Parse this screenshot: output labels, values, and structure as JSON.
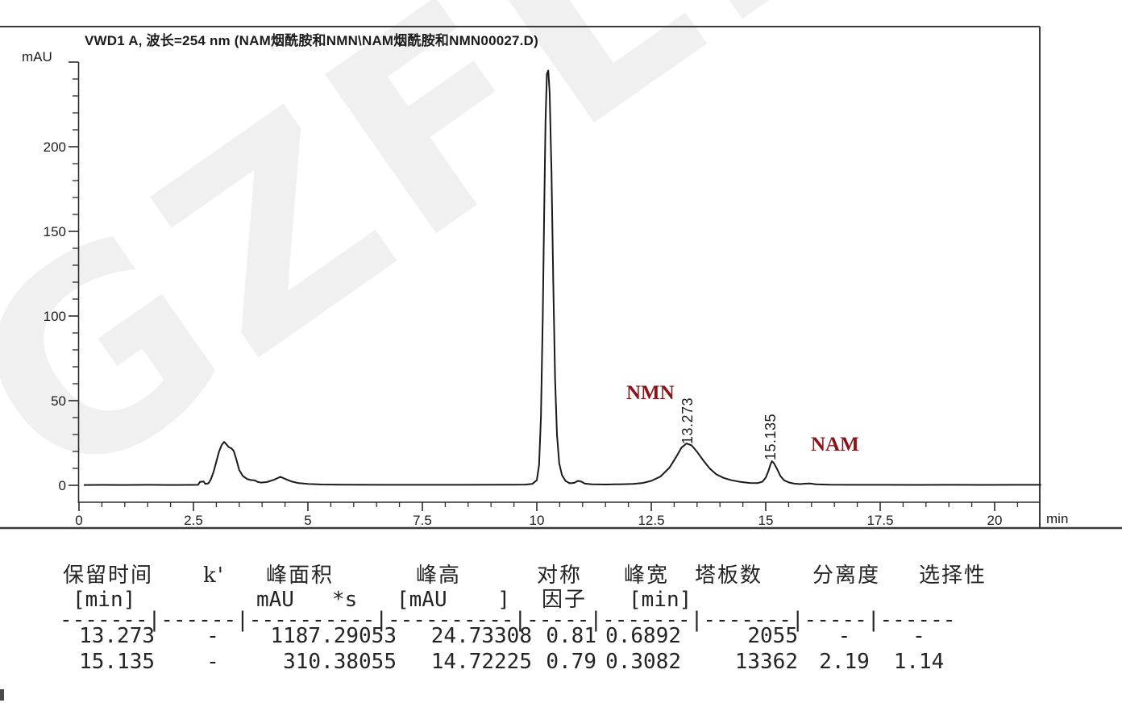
{
  "watermark": "GZFLM",
  "colors": {
    "peak_label": "#8a1518",
    "trace": "#1a1a1a",
    "axis": "#2b2b2b",
    "frame": "#3a3a3a"
  },
  "chart_data": {
    "type": "line",
    "title": "VWD1 A, 波长=254 nm (NAM烟酰胺和NMN\\NAM烟酰胺和NMN00027.D)",
    "ylabel": "mAU",
    "xlabel": "min",
    "y_unit": "mAU",
    "x_unit": "min",
    "xlim": [
      0,
      21
    ],
    "ylim": [
      0,
      250
    ],
    "x_ticks": [
      {
        "t": 0,
        "label": "0"
      },
      {
        "t": 2.5,
        "label": "2.5"
      },
      {
        "t": 5,
        "label": "5"
      },
      {
        "t": 7.5,
        "label": "7.5"
      },
      {
        "t": 10,
        "label": "10"
      },
      {
        "t": 12.5,
        "label": "12.5"
      },
      {
        "t": 15,
        "label": "15"
      },
      {
        "t": 17.5,
        "label": "17.5"
      },
      {
        "t": 20,
        "label": "20"
      }
    ],
    "x_minor_step": 0.5,
    "y_ticks": [
      {
        "v": 0,
        "label": "0"
      },
      {
        "v": 50,
        "label": "50"
      },
      {
        "v": 100,
        "label": "100"
      },
      {
        "v": 150,
        "label": "150"
      },
      {
        "v": 200,
        "label": "200"
      },
      {
        "v": 250,
        "label": ""
      }
    ],
    "y_minor_step": 10,
    "peaks": [
      {
        "label": "NMN",
        "rt_label": "13.273",
        "rt": 13.273,
        "height_mau": 24.73308
      },
      {
        "label": "NAM",
        "rt_label": "15.135",
        "rt": 15.135,
        "height_mau": 14.72225
      }
    ],
    "trace": [
      [
        0.12,
        0.2
      ],
      [
        0.5,
        0.25
      ],
      [
        1.0,
        0.2
      ],
      [
        1.5,
        0.3
      ],
      [
        2.0,
        0.2
      ],
      [
        2.45,
        0.25
      ],
      [
        2.6,
        0.3
      ],
      [
        2.64,
        2.0
      ],
      [
        2.72,
        2.3
      ],
      [
        2.76,
        0.8
      ],
      [
        2.83,
        1.2
      ],
      [
        2.88,
        3.5
      ],
      [
        2.94,
        8
      ],
      [
        3.0,
        14
      ],
      [
        3.06,
        20
      ],
      [
        3.12,
        24
      ],
      [
        3.17,
        25.6
      ],
      [
        3.22,
        24.2
      ],
      [
        3.27,
        22.6
      ],
      [
        3.33,
        21.8
      ],
      [
        3.38,
        20.3
      ],
      [
        3.44,
        15
      ],
      [
        3.5,
        9
      ],
      [
        3.58,
        5.5
      ],
      [
        3.68,
        3.6
      ],
      [
        3.76,
        3.1
      ],
      [
        3.84,
        2.9
      ],
      [
        3.9,
        2.0
      ],
      [
        3.98,
        1.6
      ],
      [
        4.1,
        1.9
      ],
      [
        4.25,
        3.2
      ],
      [
        4.4,
        5.0
      ],
      [
        4.52,
        3.6
      ],
      [
        4.65,
        2.2
      ],
      [
        4.8,
        1.3
      ],
      [
        5.0,
        0.8
      ],
      [
        5.3,
        0.5
      ],
      [
        5.8,
        0.35
      ],
      [
        6.5,
        0.3
      ],
      [
        7.5,
        0.3
      ],
      [
        8.5,
        0.3
      ],
      [
        9.4,
        0.35
      ],
      [
        9.75,
        0.45
      ],
      [
        9.9,
        0.8
      ],
      [
        10.0,
        3
      ],
      [
        10.05,
        12
      ],
      [
        10.09,
        40
      ],
      [
        10.13,
        100
      ],
      [
        10.16,
        160
      ],
      [
        10.19,
        215
      ],
      [
        10.22,
        243
      ],
      [
        10.25,
        245
      ],
      [
        10.28,
        232
      ],
      [
        10.32,
        185
      ],
      [
        10.36,
        120
      ],
      [
        10.4,
        62
      ],
      [
        10.44,
        30
      ],
      [
        10.49,
        13
      ],
      [
        10.55,
        6
      ],
      [
        10.63,
        2.5
      ],
      [
        10.72,
        1.2
      ],
      [
        10.82,
        1.5
      ],
      [
        10.9,
        2.6
      ],
      [
        10.97,
        2.2
      ],
      [
        11.05,
        1.0
      ],
      [
        11.2,
        0.6
      ],
      [
        11.5,
        0.5
      ],
      [
        11.8,
        0.6
      ],
      [
        12.1,
        0.8
      ],
      [
        12.3,
        1.3
      ],
      [
        12.5,
        2.6
      ],
      [
        12.7,
        5.2
      ],
      [
        12.9,
        10.5
      ],
      [
        13.05,
        17
      ],
      [
        13.16,
        22.3
      ],
      [
        13.27,
        24.7
      ],
      [
        13.38,
        23.6
      ],
      [
        13.5,
        19.8
      ],
      [
        13.64,
        14.5
      ],
      [
        13.78,
        9.8
      ],
      [
        13.92,
        6.5
      ],
      [
        14.08,
        4.4
      ],
      [
        14.25,
        3.0
      ],
      [
        14.45,
        2.0
      ],
      [
        14.65,
        1.4
      ],
      [
        14.82,
        1.3
      ],
      [
        14.93,
        2.2
      ],
      [
        15.0,
        4.5
      ],
      [
        15.06,
        8.5
      ],
      [
        15.1,
        12
      ],
      [
        15.135,
        14.3
      ],
      [
        15.18,
        13
      ],
      [
        15.25,
        9.5
      ],
      [
        15.32,
        5.5
      ],
      [
        15.4,
        3.0
      ],
      [
        15.5,
        1.7
      ],
      [
        15.62,
        1.0
      ],
      [
        15.75,
        0.7
      ],
      [
        15.88,
        1.0
      ],
      [
        15.97,
        1.1
      ],
      [
        16.1,
        0.6
      ],
      [
        16.4,
        0.35
      ],
      [
        16.9,
        0.3
      ],
      [
        17.5,
        0.3
      ],
      [
        18.2,
        0.25
      ],
      [
        19.0,
        0.3
      ],
      [
        19.8,
        0.25
      ],
      [
        20.5,
        0.3
      ],
      [
        21.0,
        0.3
      ]
    ]
  },
  "table": {
    "header1": [
      "保留时间",
      "k'",
      "峰面积",
      "峰高",
      "对称",
      "峰宽",
      "塔板数",
      "分离度",
      "选择性"
    ],
    "header2": [
      "[min]",
      "mAU   *s",
      "[mAU    ]",
      "因子",
      "[min]"
    ],
    "separator": "-------|------|----------|----------|-----|-------|-------|-----|------",
    "rows": [
      [
        "13.273",
        "-",
        "1187.29053",
        "24.73308",
        "0.81",
        "0.6892",
        "2055",
        "-",
        "-"
      ],
      [
        "15.135",
        "-",
        "310.38055",
        "14.72225",
        "0.79",
        "0.3082",
        "13362",
        "2.19",
        "1.14"
      ]
    ]
  }
}
